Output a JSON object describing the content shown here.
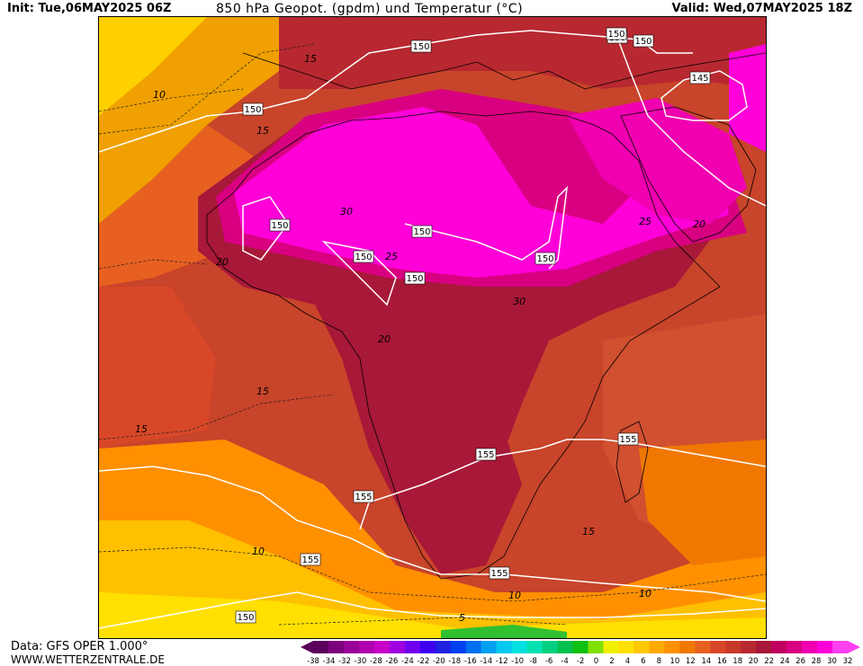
{
  "header": {
    "init": "Init: Tue,06MAY2025 06Z",
    "title": "850 hPa Geopot. (gpdm) und Temperatur (°C)",
    "valid": "Valid: Wed,07MAY2025 18Z"
  },
  "footer": {
    "source": "Data: GFS OPER 1.000°",
    "site": "WWW.WETTERZENTRALE.DE"
  },
  "legend": {
    "ticks": [
      "-38",
      "-34",
      "-32",
      "-30",
      "-28",
      "-26",
      "-24",
      "-22",
      "-20",
      "-18",
      "-16",
      "-14",
      "-12",
      "-10",
      "-8",
      "-6",
      "-4",
      "-2",
      "0",
      "2",
      "4",
      "6",
      "8",
      "10",
      "12",
      "14",
      "16",
      "18",
      "20",
      "22",
      "24",
      "26",
      "28",
      "30",
      "32"
    ],
    "colors": [
      "#5a005a",
      "#7d007d",
      "#9a009a",
      "#b000b0",
      "#c800c8",
      "#a000e0",
      "#7000f0",
      "#4000f0",
      "#2020e0",
      "#0040f0",
      "#0070f0",
      "#00a0f0",
      "#00c8f0",
      "#00e0e0",
      "#00e0b0",
      "#00d080",
      "#00c050",
      "#10c010",
      "#80e000",
      "#f0f000",
      "#ffe000",
      "#ffc800",
      "#ffaa00",
      "#ff9000",
      "#f07800",
      "#e86020",
      "#d84828",
      "#c83828",
      "#b82830",
      "#a81838",
      "#c00060",
      "#d80080",
      "#f000b0",
      "#ff00d8",
      "#ff40f0"
    ]
  },
  "map": {
    "geopotential_labels": [
      "150",
      "150",
      "150",
      "150",
      "145",
      "150",
      "150",
      "150",
      "150",
      "150",
      "150",
      "155",
      "155",
      "155",
      "155",
      "155",
      "150"
    ],
    "temperature_labels": [
      "10",
      "15",
      "20",
      "30",
      "25",
      "25",
      "20",
      "30",
      "20",
      "15",
      "15",
      "10",
      "15",
      "10",
      "10",
      "5",
      "15"
    ]
  }
}
